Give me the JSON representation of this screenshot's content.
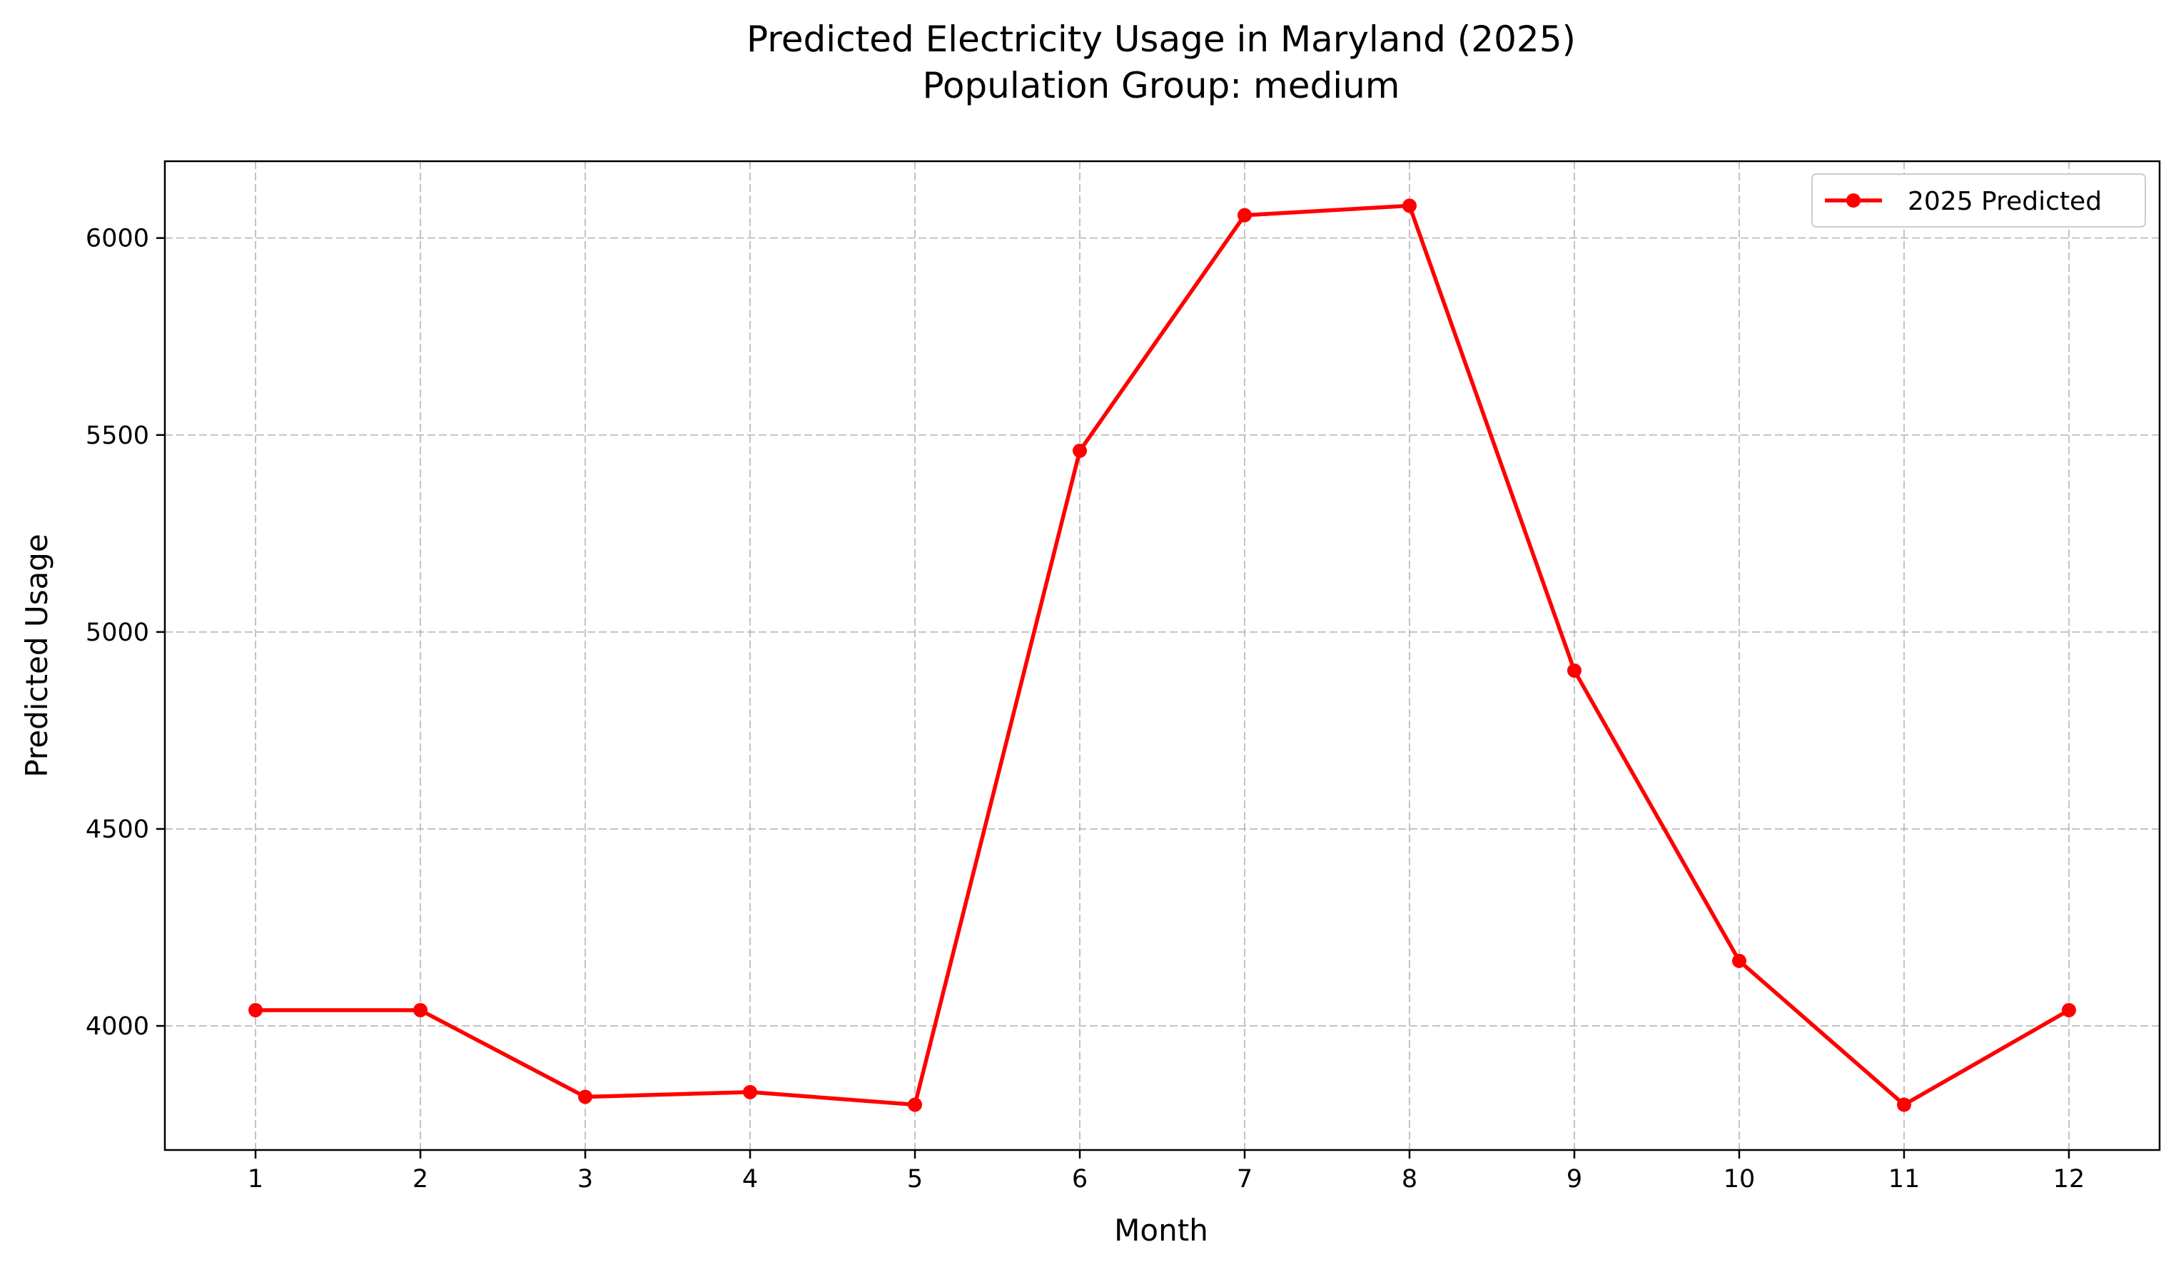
{
  "chart_data": {
    "type": "line",
    "title": "Predicted Electricity Usage in Maryland (2025)",
    "subtitle": "Population Group: medium",
    "xlabel": "Month",
    "ylabel": "Predicted Usage",
    "x": [
      1,
      2,
      3,
      4,
      5,
      6,
      7,
      8,
      9,
      10,
      11,
      12
    ],
    "x_tick_labels": [
      "1",
      "2",
      "3",
      "4",
      "5",
      "6",
      "7",
      "8",
      "9",
      "10",
      "11",
      "12"
    ],
    "y_ticks": [
      4000,
      4500,
      5000,
      5500,
      6000
    ],
    "y_tick_labels": [
      "4000",
      "4500",
      "5000",
      "5500",
      "6000"
    ],
    "xlim": [
      0.45,
      12.55
    ],
    "ylim": [
      3685,
      6195
    ],
    "grid": true,
    "legend_position": "top-right",
    "series": [
      {
        "name": "2025 Predicted",
        "color": "#ff0000",
        "marker": "circle",
        "values": [
          4040,
          4040,
          3820,
          3832,
          3800,
          5460,
          6058,
          6082,
          4902,
          4165,
          3800,
          4040
        ]
      }
    ]
  }
}
